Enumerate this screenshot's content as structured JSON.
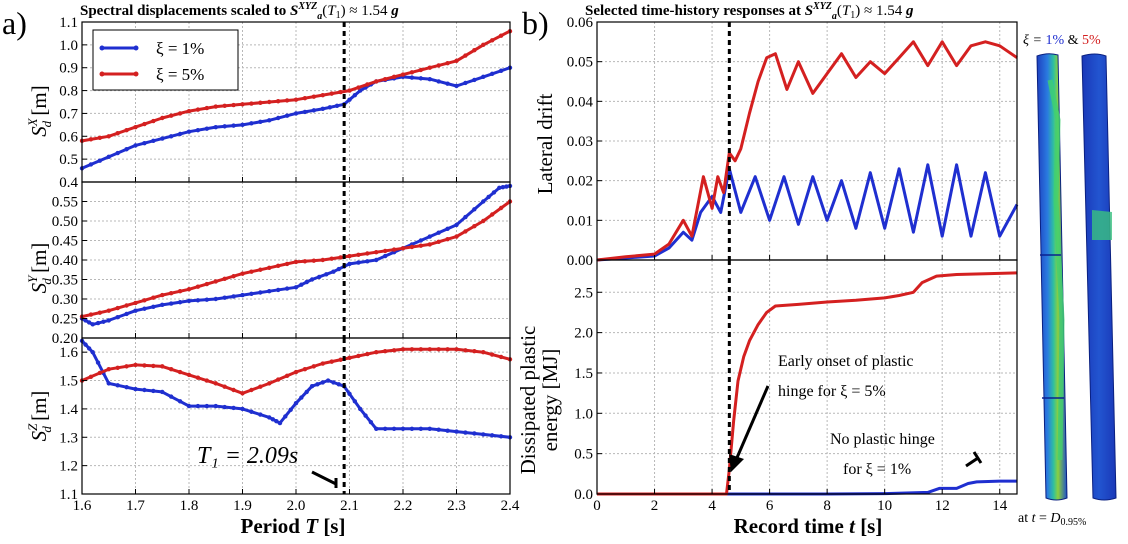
{
  "figure": {
    "panel_a": "a)",
    "panel_b": "b)",
    "title_a": "Spectral displacements scaled to S_a^{XYZ}(T_1) ≈ 1.54 g",
    "title_b": "Selected time-history responses at S_a^{XYZ}(T_1) ≈ 1.54 g",
    "colors": {
      "xi1": "#1f2fd0",
      "xi5": "#d42020"
    }
  },
  "legend": {
    "xi1": "ξ = 1%",
    "xi5": "ξ = 5%",
    "placement": "top-left"
  },
  "annotations": {
    "t1_label": "T₁ = 2.09s",
    "early_onset_line1": "Early onset of plastic",
    "early_onset_line2": "hinge for ξ = 5%",
    "no_hinge_line1": "No plastic hinge",
    "no_hinge_line2": "for ξ = 1%",
    "fe_header_xi": "ξ = ",
    "fe_header_1": "1%",
    "fe_header_amp": " & ",
    "fe_header_5": "5%",
    "fe_footer": "at t = D_{0.95%}"
  },
  "chart_data": [
    {
      "type": "line",
      "id": "sdx",
      "title": "Spectral displacements scaled to S_a^{XYZ}(T_1) ≈ 1.54 g",
      "xlabel": "",
      "ylabel": "S_d^X [m]",
      "xlim": [
        1.6,
        2.4
      ],
      "ylim": [
        0.4,
        1.1
      ],
      "xticks": [
        1.6,
        1.7,
        1.8,
        1.9,
        2.0,
        2.1,
        2.2,
        2.3,
        2.4
      ],
      "yticks": [
        0.4,
        0.5,
        0.6,
        0.7,
        0.8,
        0.9,
        1.0,
        1.1
      ],
      "grid": true,
      "vline": 2.09,
      "series": [
        {
          "name": "ξ = 1%",
          "color": "#1f2fd0",
          "x": [
            1.6,
            1.65,
            1.7,
            1.75,
            1.8,
            1.85,
            1.9,
            1.95,
            2.0,
            2.05,
            2.09,
            2.12,
            2.15,
            2.2,
            2.25,
            2.3,
            2.35,
            2.4
          ],
          "y": [
            0.46,
            0.51,
            0.56,
            0.59,
            0.62,
            0.64,
            0.65,
            0.67,
            0.7,
            0.72,
            0.74,
            0.8,
            0.84,
            0.86,
            0.85,
            0.82,
            0.86,
            0.9
          ]
        },
        {
          "name": "ξ = 5%",
          "color": "#d42020",
          "x": [
            1.6,
            1.65,
            1.7,
            1.75,
            1.8,
            1.85,
            1.9,
            1.95,
            2.0,
            2.05,
            2.1,
            2.15,
            2.2,
            2.25,
            2.3,
            2.35,
            2.4
          ],
          "y": [
            0.58,
            0.6,
            0.64,
            0.68,
            0.71,
            0.73,
            0.74,
            0.75,
            0.76,
            0.78,
            0.8,
            0.84,
            0.87,
            0.9,
            0.93,
            1.0,
            1.06
          ]
        }
      ]
    },
    {
      "type": "line",
      "id": "sdy",
      "xlabel": "",
      "ylabel": "S_d^Y [m]",
      "xlim": [
        1.6,
        2.4
      ],
      "ylim": [
        0.2,
        0.6
      ],
      "xticks": [
        1.6,
        1.7,
        1.8,
        1.9,
        2.0,
        2.1,
        2.2,
        2.3,
        2.4
      ],
      "yticks": [
        0.2,
        0.25,
        0.3,
        0.35,
        0.4,
        0.45,
        0.5,
        0.55
      ],
      "grid": true,
      "vline": 2.09,
      "series": [
        {
          "name": "ξ = 1%",
          "color": "#1f2fd0",
          "x": [
            1.6,
            1.62,
            1.65,
            1.7,
            1.75,
            1.8,
            1.85,
            1.9,
            1.95,
            2.0,
            2.03,
            2.07,
            2.1,
            2.15,
            2.2,
            2.25,
            2.3,
            2.35,
            2.38,
            2.4
          ],
          "y": [
            0.25,
            0.235,
            0.245,
            0.27,
            0.285,
            0.295,
            0.3,
            0.31,
            0.32,
            0.33,
            0.35,
            0.37,
            0.39,
            0.4,
            0.43,
            0.46,
            0.49,
            0.55,
            0.585,
            0.59
          ]
        },
        {
          "name": "ξ = 5%",
          "color": "#d42020",
          "x": [
            1.6,
            1.65,
            1.7,
            1.75,
            1.8,
            1.85,
            1.9,
            1.95,
            2.0,
            2.05,
            2.1,
            2.15,
            2.2,
            2.25,
            2.3,
            2.35,
            2.4
          ],
          "y": [
            0.255,
            0.27,
            0.29,
            0.31,
            0.325,
            0.345,
            0.365,
            0.38,
            0.395,
            0.4,
            0.41,
            0.42,
            0.43,
            0.44,
            0.46,
            0.5,
            0.55
          ]
        }
      ]
    },
    {
      "type": "line",
      "id": "sdz",
      "xlabel": "Period T [s]",
      "ylabel": "S_d^Z [m]",
      "xlim": [
        1.6,
        2.4
      ],
      "ylim": [
        1.1,
        1.65
      ],
      "xticks": [
        1.6,
        1.7,
        1.8,
        1.9,
        2.0,
        2.1,
        2.2,
        2.3,
        2.4
      ],
      "yticks": [
        1.1,
        1.2,
        1.3,
        1.4,
        1.5,
        1.6
      ],
      "grid": true,
      "vline": 2.09,
      "series": [
        {
          "name": "ξ = 1%",
          "color": "#1f2fd0",
          "x": [
            1.6,
            1.62,
            1.65,
            1.7,
            1.75,
            1.8,
            1.85,
            1.9,
            1.95,
            1.97,
            2.0,
            2.03,
            2.06,
            2.09,
            2.12,
            2.15,
            2.2,
            2.25,
            2.3,
            2.35,
            2.4
          ],
          "y": [
            1.64,
            1.6,
            1.49,
            1.47,
            1.46,
            1.41,
            1.41,
            1.4,
            1.37,
            1.35,
            1.42,
            1.48,
            1.5,
            1.48,
            1.4,
            1.33,
            1.33,
            1.33,
            1.32,
            1.31,
            1.3
          ]
        },
        {
          "name": "ξ = 5%",
          "color": "#d42020",
          "x": [
            1.6,
            1.65,
            1.7,
            1.75,
            1.8,
            1.85,
            1.9,
            1.95,
            2.0,
            2.05,
            2.1,
            2.15,
            2.2,
            2.25,
            2.3,
            2.35,
            2.4
          ],
          "y": [
            1.5,
            1.54,
            1.555,
            1.55,
            1.52,
            1.49,
            1.455,
            1.49,
            1.53,
            1.56,
            1.58,
            1.6,
            1.61,
            1.61,
            1.61,
            1.6,
            1.575
          ]
        }
      ]
    },
    {
      "type": "line",
      "id": "drift",
      "title": "Selected time-history responses at S_a^{XYZ}(T_1) ≈ 1.54 g",
      "xlabel": "",
      "ylabel": "Lateral drift",
      "xlim": [
        0,
        14.6
      ],
      "ylim": [
        0,
        0.06
      ],
      "xticks": [
        0,
        2,
        4,
        6,
        8,
        10,
        12,
        14
      ],
      "yticks": [
        0.0,
        0.01,
        0.02,
        0.03,
        0.04,
        0.05,
        0.06
      ],
      "grid": true,
      "vline": 4.6,
      "series": [
        {
          "name": "ξ = 1%",
          "color": "#1f2fd0",
          "x": [
            0,
            1,
            2,
            2.5,
            3,
            3.3,
            3.6,
            4,
            4.3,
            4.6,
            5,
            5.5,
            6,
            6.5,
            7,
            7.5,
            8,
            8.5,
            9,
            9.5,
            10,
            10.5,
            11,
            11.5,
            12,
            12.5,
            13,
            13.5,
            14,
            14.6
          ],
          "y": [
            0,
            0.0005,
            0.001,
            0.003,
            0.007,
            0.005,
            0.012,
            0.016,
            0.012,
            0.023,
            0.012,
            0.021,
            0.01,
            0.021,
            0.009,
            0.021,
            0.01,
            0.02,
            0.008,
            0.022,
            0.008,
            0.023,
            0.007,
            0.024,
            0.006,
            0.024,
            0.006,
            0.022,
            0.006,
            0.014
          ]
        },
        {
          "name": "ξ = 5%",
          "color": "#d42020",
          "x": [
            0,
            1,
            2,
            2.5,
            3,
            3.3,
            3.7,
            4,
            4.2,
            4.4,
            4.6,
            4.8,
            5,
            5.3,
            5.6,
            5.9,
            6.2,
            6.6,
            7,
            7.5,
            8,
            8.5,
            9,
            9.5,
            10,
            10.5,
            11,
            11.5,
            12,
            12.5,
            13,
            13.5,
            14,
            14.6
          ],
          "y": [
            0,
            0.0008,
            0.0015,
            0.004,
            0.01,
            0.006,
            0.021,
            0.013,
            0.021,
            0.017,
            0.027,
            0.025,
            0.028,
            0.037,
            0.045,
            0.051,
            0.052,
            0.043,
            0.05,
            0.042,
            0.047,
            0.052,
            0.046,
            0.05,
            0.047,
            0.051,
            0.055,
            0.049,
            0.055,
            0.049,
            0.054,
            0.055,
            0.054,
            0.051
          ]
        }
      ]
    },
    {
      "type": "line",
      "id": "energy",
      "xlabel": "Record time t [s]",
      "ylabel": "Dissipated plastic energy [MJ]",
      "xlim": [
        0,
        14.6
      ],
      "ylim": [
        0,
        2.9
      ],
      "xticks": [
        0,
        2,
        4,
        6,
        8,
        10,
        12,
        14
      ],
      "yticks": [
        0.0,
        0.5,
        1.0,
        1.5,
        2.0,
        2.5
      ],
      "grid": true,
      "vline": 4.6,
      "series": [
        {
          "name": "ξ = 1%",
          "color": "#1f2fd0",
          "x": [
            0,
            4.6,
            6,
            8,
            10,
            11.5,
            11.9,
            12.5,
            12.9,
            13.2,
            14,
            14.6
          ],
          "y": [
            0,
            0,
            0,
            0,
            0.005,
            0.02,
            0.07,
            0.07,
            0.13,
            0.15,
            0.16,
            0.16
          ]
        },
        {
          "name": "ξ = 5%",
          "color": "#d42020",
          "x": [
            0,
            4.5,
            4.6,
            4.75,
            4.9,
            5.1,
            5.3,
            5.6,
            5.9,
            6.2,
            7,
            8,
            9,
            10,
            10.5,
            11,
            11.3,
            11.8,
            12.5,
            13.5,
            14.6
          ],
          "y": [
            0,
            0,
            0.3,
            0.9,
            1.4,
            1.7,
            1.9,
            2.1,
            2.25,
            2.33,
            2.35,
            2.38,
            2.4,
            2.43,
            2.46,
            2.5,
            2.62,
            2.7,
            2.72,
            2.73,
            2.74
          ]
        }
      ]
    }
  ]
}
